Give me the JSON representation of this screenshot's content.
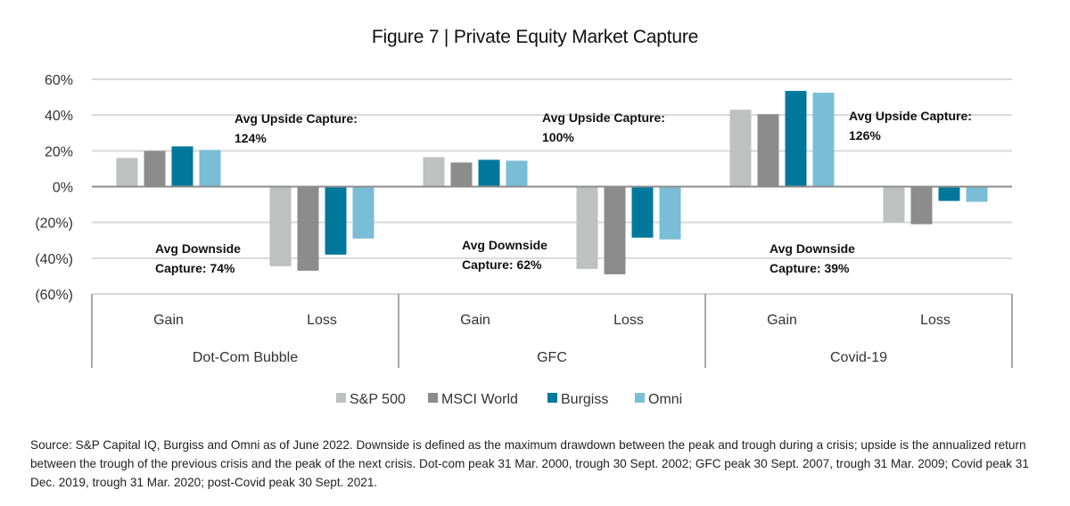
{
  "chart_data": {
    "type": "bar",
    "title": "Figure 7 | Private Equity Market Capture",
    "xlabel": "",
    "ylabel": "",
    "ylim": [
      -60,
      60
    ],
    "yticks": [
      60,
      40,
      20,
      0,
      -20,
      -40,
      -60
    ],
    "ytick_labels": [
      "60%",
      "40%",
      "20%",
      "0%",
      "(20%)",
      "(40%)",
      "(60%)"
    ],
    "grid": true,
    "groups": [
      "Dot-Com Bubble",
      "GFC",
      "Covid-19"
    ],
    "subcategories": [
      "Gain",
      "Loss"
    ],
    "categories": [
      "Dot-Com Bubble Gain",
      "Dot-Com Bubble Loss",
      "GFC Gain",
      "GFC Loss",
      "Covid-19 Gain",
      "Covid-19 Loss"
    ],
    "series": [
      {
        "name": "S&P 500",
        "color": "#BFC0C0",
        "values": [
          16,
          -44.5,
          16.5,
          -46,
          43,
          -20
        ]
      },
      {
        "name": "MSCI World",
        "color": "#8C8C8C",
        "values": [
          20,
          -47,
          13.5,
          -49,
          40.5,
          -21
        ]
      },
      {
        "name": "Burgiss",
        "color": "#00789B",
        "values": [
          22.5,
          -38,
          15,
          -28.5,
          53.5,
          -8
        ]
      },
      {
        "name": "Omni",
        "color": "#79BED6",
        "values": [
          20.5,
          -29,
          14.5,
          -29.5,
          52.5,
          -8.5
        ]
      }
    ],
    "annotations": [
      {
        "group": "Dot-Com Bubble",
        "lines": [
          "Avg Upside Capture:",
          "124%"
        ]
      },
      {
        "group": "Dot-Com Bubble",
        "lines": [
          "Avg Downside",
          "Capture: 74%"
        ]
      },
      {
        "group": "GFC",
        "lines": [
          "Avg Upside Capture:",
          "100%"
        ]
      },
      {
        "group": "GFC",
        "lines": [
          "Avg Downside",
          "Capture: 62%"
        ]
      },
      {
        "group": "Covid-19",
        "lines": [
          "Avg Upside Capture:",
          "126%"
        ]
      },
      {
        "group": "Covid-19",
        "lines": [
          "Avg Downside",
          "Capture: 39%"
        ]
      }
    ],
    "legend": {
      "placement": "bottom",
      "entries": [
        "S&P 500",
        "MSCI World",
        "Burgiss",
        "Omni"
      ]
    }
  },
  "source_note": "Source: S&P Capital IQ, Burgiss and Omni as of June 2022. Downside is defined as the maximum drawdown between the peak and trough during a crisis; upside is the annualized return between the trough of the previous crisis and the peak of the next crisis. Dot-com peak 31 Mar. 2000, trough 30 Sept. 2002; GFC peak 30 Sept. 2007, trough 31 Mar. 2009; Covid peak 31 Dec. 2019, trough 31 Mar. 2020; post-Covid peak 30 Sept. 2021."
}
